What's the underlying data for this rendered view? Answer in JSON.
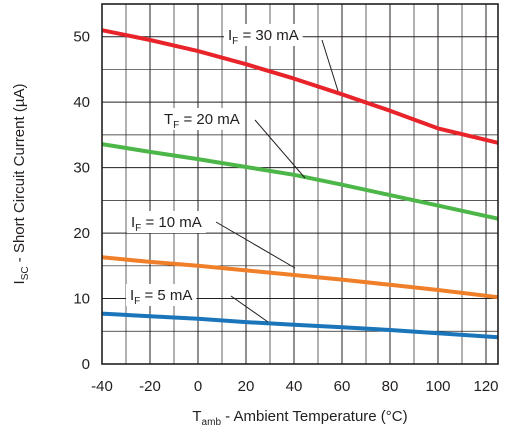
{
  "chart_data": {
    "type": "line",
    "xlim": [
      -40,
      125
    ],
    "ylim": [
      0,
      55
    ],
    "x_ticks": [
      -40,
      -20,
      0,
      20,
      40,
      60,
      80,
      100,
      120
    ],
    "y_ticks": [
      0,
      10,
      20,
      30,
      40,
      50
    ],
    "grid": true,
    "xlabel": {
      "main": "T",
      "sub": "amb",
      "rest": " - Ambient Temperature (°C)"
    },
    "ylabel": {
      "main": "I",
      "sub": "SC",
      "rest": " - Short Circuit Current (µA)"
    },
    "series": [
      {
        "label": {
          "main": "I",
          "sub": "F",
          "rest": " = 30 mA"
        },
        "color": "#e8232a",
        "x": [
          -40,
          -20,
          0,
          20,
          40,
          60,
          80,
          100,
          125
        ],
        "y": [
          51.0,
          49.5,
          47.8,
          45.8,
          43.6,
          41.2,
          38.7,
          36.0,
          33.8
        ]
      },
      {
        "label": {
          "main": "T",
          "sub": "F",
          "rest": " = 20 mA"
        },
        "color": "#4cb748",
        "x": [
          -40,
          -20,
          0,
          20,
          40,
          60,
          80,
          100,
          125
        ],
        "y": [
          33.6,
          32.4,
          31.3,
          30.1,
          28.9,
          27.4,
          25.8,
          24.2,
          22.2
        ]
      },
      {
        "label": {
          "main": "I",
          "sub": "F",
          "rest": " = 10 mA"
        },
        "color": "#f07f2a",
        "x": [
          -40,
          -20,
          0,
          20,
          40,
          60,
          80,
          100,
          125
        ],
        "y": [
          16.3,
          15.6,
          15.0,
          14.3,
          13.6,
          12.9,
          12.1,
          11.3,
          10.2
        ]
      },
      {
        "label": {
          "main": "I",
          "sub": "F",
          "rest": " = 5 mA"
        },
        "color": "#1a75bb",
        "x": [
          -40,
          -20,
          0,
          20,
          40,
          60,
          80,
          100,
          125
        ],
        "y": [
          7.7,
          7.3,
          6.9,
          6.4,
          6.0,
          5.6,
          5.2,
          4.7,
          4.1
        ]
      }
    ]
  }
}
